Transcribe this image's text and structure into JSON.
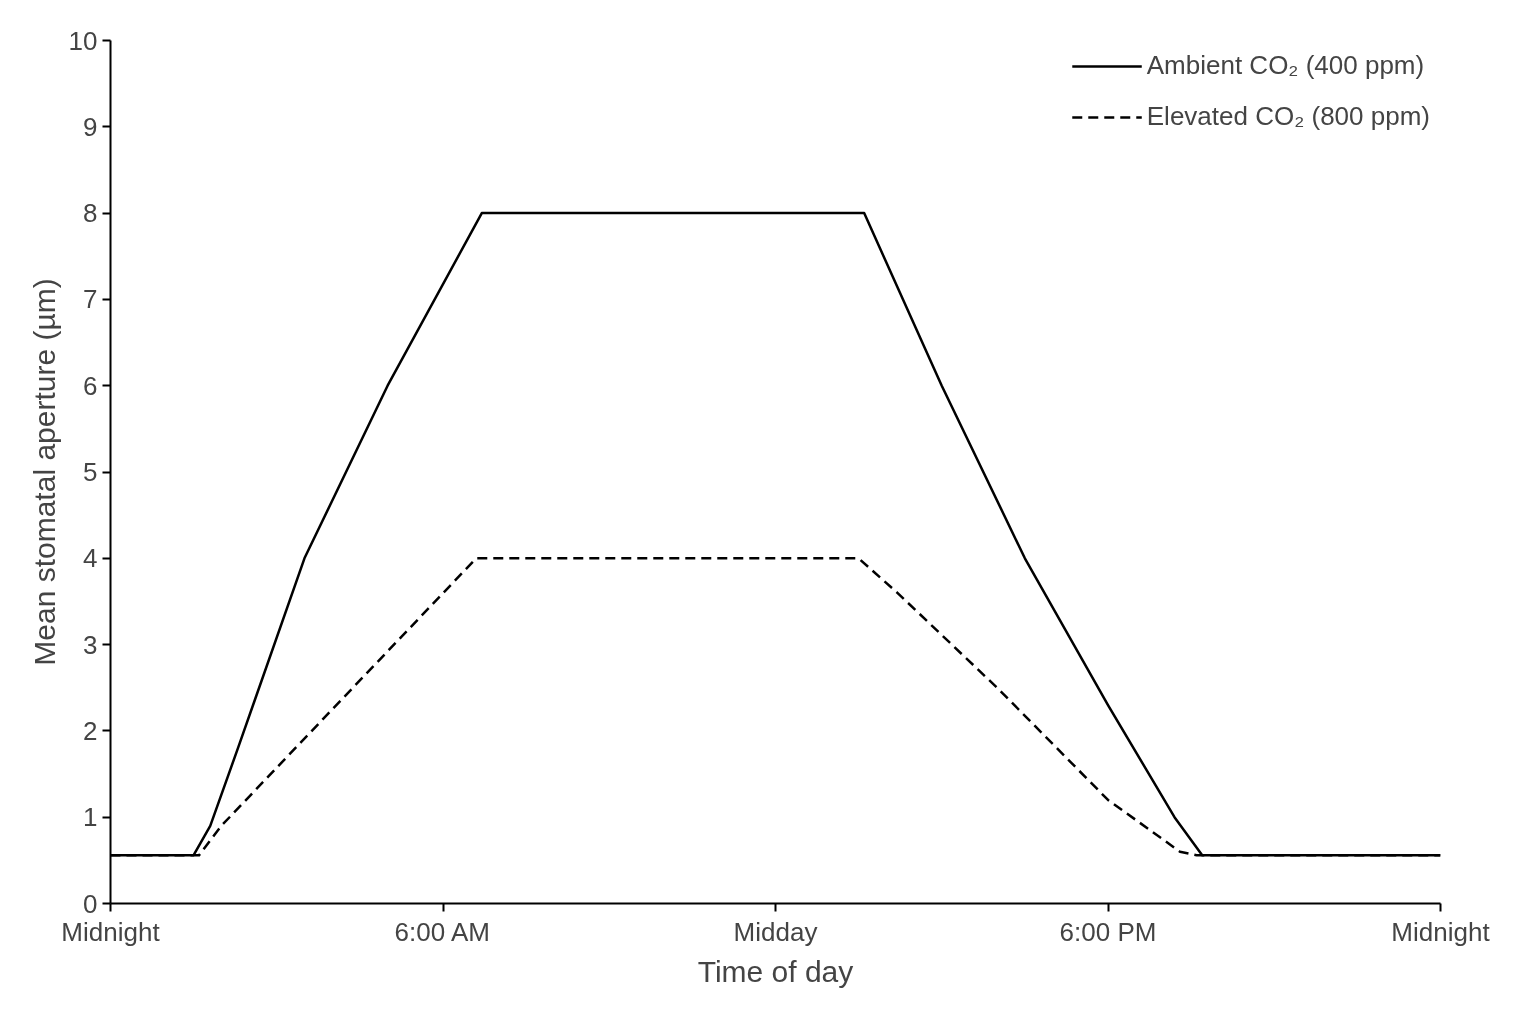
{
  "chart_data": {
    "type": "line",
    "xlabel": "Time of day",
    "ylabel": "Mean stomatal aperture (µm)",
    "xlim": [
      0,
      24
    ],
    "ylim": [
      0,
      10
    ],
    "xticks": [
      {
        "value": 0,
        "label": "Midnight"
      },
      {
        "value": 6,
        "label": "6:00 AM"
      },
      {
        "value": 12,
        "label": "Midday"
      },
      {
        "value": 18,
        "label": "6:00 PM"
      },
      {
        "value": 24,
        "label": "Midnight"
      }
    ],
    "yticks": [
      0,
      1,
      2,
      3,
      4,
      5,
      6,
      7,
      8,
      9,
      10
    ],
    "grid": false,
    "legend": "top right",
    "series": [
      {
        "name": "Ambient CO₂ (400 ppm)",
        "color": "#000000",
        "line_style": "solid",
        "x": [
          0,
          1.5,
          1.8,
          2.3,
          3.5,
          5,
          6.7,
          13.6,
          15,
          16.5,
          18,
          19.2,
          19.7,
          24
        ],
        "values": [
          0.56,
          0.56,
          0.9,
          1.8,
          4,
          6,
          8,
          8,
          6,
          4,
          2.3,
          1,
          0.56,
          0.56
        ]
      },
      {
        "name": "Elevated CO₂ (800 ppm)",
        "color": "#000000",
        "line_style": "dashed",
        "x": [
          0,
          1.6,
          2,
          6.6,
          13.5,
          14.2,
          16,
          18,
          19.3,
          19.6,
          24
        ],
        "values": [
          0.56,
          0.56,
          0.9,
          4,
          4,
          3.6,
          2.5,
          1.2,
          0.6,
          0.56,
          0.56
        ]
      }
    ]
  }
}
